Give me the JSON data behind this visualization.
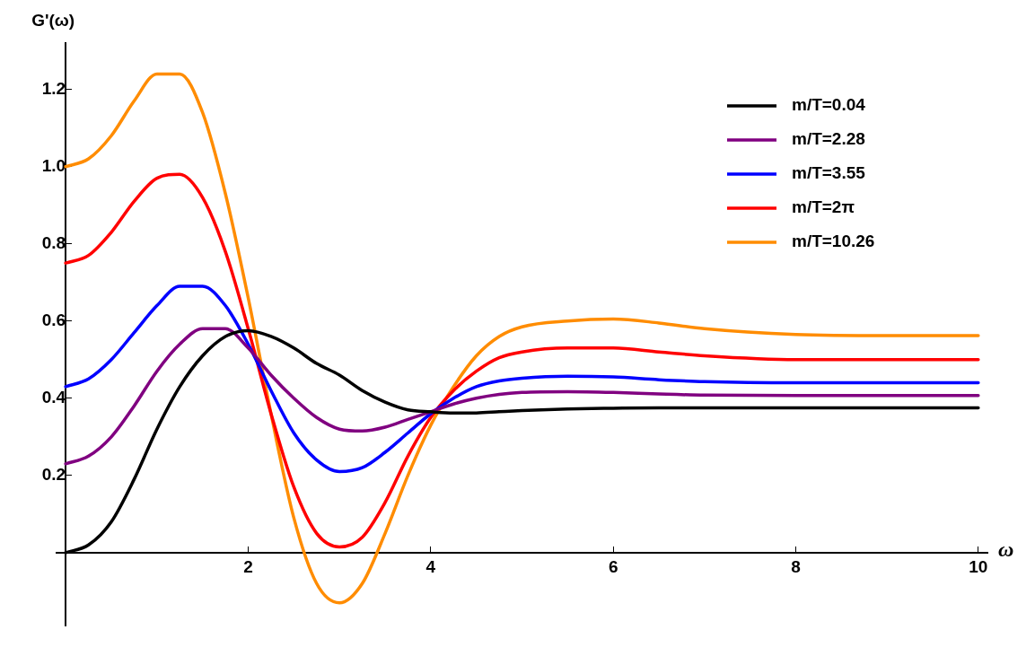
{
  "chart_data": {
    "type": "line",
    "xlabel": "ω",
    "ylabel": "G'(ω)",
    "x": [
      0,
      0.25,
      0.5,
      0.75,
      1,
      1.25,
      1.5,
      1.75,
      2,
      2.25,
      2.5,
      2.75,
      3,
      3.25,
      3.5,
      3.75,
      4,
      4.25,
      4.5,
      4.75,
      5,
      5.5,
      6,
      6.5,
      7,
      8,
      9,
      10
    ],
    "series": [
      {
        "name": "m/T=0.04",
        "color": "#000000",
        "values": [
          0.0,
          0.02,
          0.08,
          0.19,
          0.32,
          0.43,
          0.51,
          0.56,
          0.575,
          0.56,
          0.53,
          0.49,
          0.46,
          0.42,
          0.39,
          0.37,
          0.365,
          0.362,
          0.362,
          0.365,
          0.368,
          0.372,
          0.374,
          0.375,
          0.375,
          0.375,
          0.375,
          0.375
        ]
      },
      {
        "name": "m/T=2.28",
        "color": "#800080",
        "values": [
          0.23,
          0.25,
          0.3,
          0.38,
          0.47,
          0.54,
          0.58,
          0.58,
          0.53,
          0.46,
          0.4,
          0.35,
          0.32,
          0.315,
          0.325,
          0.345,
          0.365,
          0.385,
          0.4,
          0.41,
          0.415,
          0.417,
          0.415,
          0.411,
          0.408,
          0.407,
          0.407,
          0.407
        ]
      },
      {
        "name": "m/T=3.55",
        "color": "#0000ff",
        "values": [
          0.43,
          0.45,
          0.5,
          0.57,
          0.64,
          0.69,
          0.69,
          0.64,
          0.54,
          0.42,
          0.31,
          0.24,
          0.21,
          0.22,
          0.26,
          0.31,
          0.36,
          0.4,
          0.43,
          0.445,
          0.452,
          0.457,
          0.455,
          0.448,
          0.443,
          0.44,
          0.44,
          0.44
        ]
      },
      {
        "name": "m/T=2π",
        "color": "#ff0000",
        "values": [
          0.75,
          0.77,
          0.83,
          0.91,
          0.97,
          0.98,
          0.92,
          0.78,
          0.58,
          0.36,
          0.17,
          0.05,
          0.015,
          0.04,
          0.13,
          0.25,
          0.35,
          0.42,
          0.47,
          0.505,
          0.52,
          0.53,
          0.53,
          0.52,
          0.51,
          0.5,
          0.5,
          0.5
        ]
      },
      {
        "name": "m/T=10.26",
        "color": "#ff8c00",
        "values": [
          1.0,
          1.02,
          1.08,
          1.17,
          1.24,
          1.24,
          1.14,
          0.93,
          0.66,
          0.36,
          0.09,
          -0.08,
          -0.13,
          -0.08,
          0.05,
          0.2,
          0.33,
          0.43,
          0.51,
          0.56,
          0.585,
          0.6,
          0.605,
          0.595,
          0.58,
          0.565,
          0.562,
          0.562
        ]
      }
    ],
    "xlim": [
      -0.1,
      10.1
    ],
    "ylim": [
      -0.19,
      1.32
    ],
    "xticks": [
      2,
      4,
      6,
      8,
      10
    ],
    "yticks": [
      {
        "value": 0.2,
        "label": "0.2"
      },
      {
        "value": 0.4,
        "label": "0.4"
      },
      {
        "value": 0.6,
        "label": "0.6"
      },
      {
        "value": 0.8,
        "label": "0.8"
      },
      {
        "value": 1,
        "label": "1.0"
      },
      {
        "value": 1.2,
        "label": "1.2"
      }
    ],
    "legend": "top right",
    "grid": false,
    "marker": "none",
    "line_style": "solid"
  }
}
